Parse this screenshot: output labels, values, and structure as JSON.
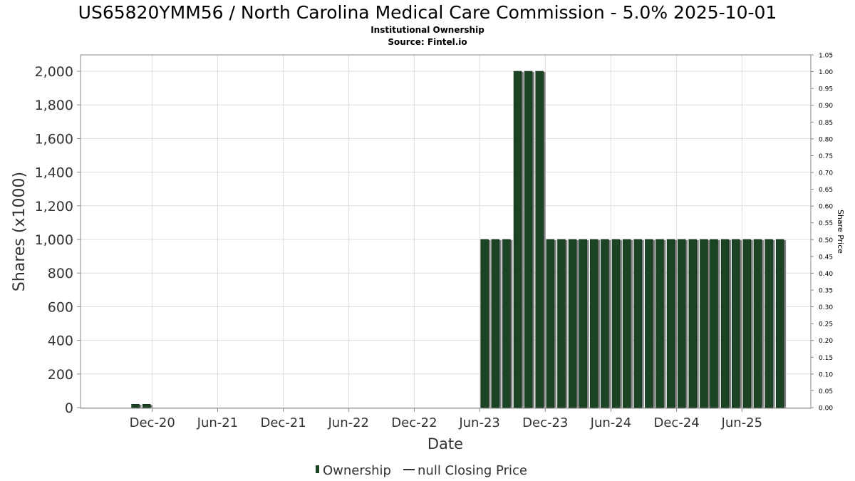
{
  "chart_data": {
    "type": "bar",
    "title": "US65820YMM56 / North Carolina Medical Care Commission - 5.0% 2025-10-01",
    "subtitle": "Institutional Ownership",
    "source": "Source: Fintel.io",
    "xlabel": "Date",
    "ylabel": "Shares (x1000)",
    "y2label": "Share Price",
    "ylim": [
      0,
      2000
    ],
    "y2lim": [
      0,
      1.05
    ],
    "yticks": [
      "0",
      "200",
      "400",
      "600",
      "800",
      "1,000",
      "1,200",
      "1,400",
      "1,600",
      "1,800",
      "2,000"
    ],
    "y2ticks": [
      "0.00",
      "0.05",
      "0.10",
      "0.15",
      "0.20",
      "0.25",
      "0.30",
      "0.35",
      "0.40",
      "0.45",
      "0.50",
      "0.55",
      "0.60",
      "0.65",
      "0.70",
      "0.75",
      "0.80",
      "0.85",
      "0.90",
      "0.95",
      "1.00",
      "1.05"
    ],
    "xticks": [
      "Dec-20",
      "Jun-21",
      "Dec-21",
      "Jun-22",
      "Dec-22",
      "Jun-23",
      "Dec-23",
      "Jun-24",
      "Dec-24",
      "Jun-25"
    ],
    "xrange": [
      "2020-05-15",
      "2025-12-10"
    ],
    "grid": true,
    "legend_position": "bottom",
    "colors": {
      "bar": "#1a4423",
      "bar_shadow": "#808080",
      "grid": "#dddddd",
      "axis": "#888888"
    },
    "series": [
      {
        "name": "Ownership",
        "points": [
          [
            "2020-10-15",
            20
          ],
          [
            "2020-11-15",
            20
          ],
          [
            "2023-06-15",
            1000
          ],
          [
            "2023-07-15",
            1000
          ],
          [
            "2023-08-15",
            1000
          ],
          [
            "2023-09-15",
            2000
          ],
          [
            "2023-10-15",
            2000
          ],
          [
            "2023-11-15",
            2000
          ],
          [
            "2023-12-15",
            1000
          ],
          [
            "2024-01-15",
            1000
          ],
          [
            "2024-02-15",
            1000
          ],
          [
            "2024-03-15",
            1000
          ],
          [
            "2024-04-15",
            1000
          ],
          [
            "2024-05-15",
            1000
          ],
          [
            "2024-06-15",
            1000
          ],
          [
            "2024-07-15",
            1000
          ],
          [
            "2024-08-15",
            1000
          ],
          [
            "2024-09-15",
            1000
          ],
          [
            "2024-10-15",
            1000
          ],
          [
            "2024-11-15",
            1000
          ],
          [
            "2024-12-15",
            1000
          ],
          [
            "2025-01-15",
            1000
          ],
          [
            "2025-02-15",
            1000
          ],
          [
            "2025-03-15",
            1000
          ],
          [
            "2025-04-15",
            1000
          ],
          [
            "2025-05-15",
            1000
          ],
          [
            "2025-06-15",
            1000
          ],
          [
            "2025-07-15",
            1000
          ],
          [
            "2025-08-15",
            1000
          ],
          [
            "2025-09-15",
            1000
          ]
        ]
      },
      {
        "name": "null Closing Price",
        "points": []
      }
    ]
  }
}
